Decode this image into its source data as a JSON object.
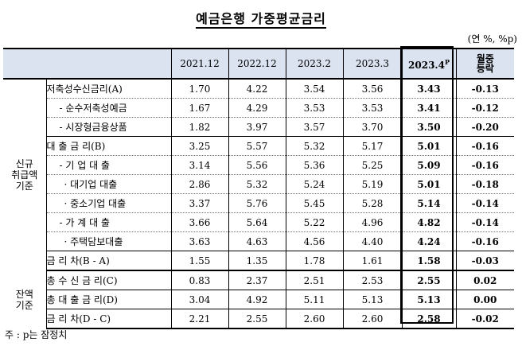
{
  "title": "예금은행 가중평균금리",
  "unit": "(연 %, %p)",
  "columns": [
    "2021.12",
    "2022.12",
    "2023.2",
    "2023.3",
    "2023.4",
    "P",
    "월중",
    "등락"
  ],
  "groups": {
    "new": [
      "신규",
      "취급액",
      "기준"
    ],
    "balance": [
      "잔액",
      "기준"
    ]
  },
  "rows_new": [
    {
      "label": "저축성수신금리(A)",
      "values": [
        "1.70",
        "4.22",
        "3.54",
        "3.56",
        "3.43",
        "-0.13"
      ]
    },
    {
      "label": "- 순수저축성예금",
      "values": [
        "1.67",
        "4.29",
        "3.53",
        "3.53",
        "3.41",
        "-0.12"
      ]
    },
    {
      "label": "- 시장형금융상품",
      "values": [
        "1.82",
        "3.97",
        "3.57",
        "3.70",
        "3.50",
        "-0.20"
      ]
    },
    {
      "label": "대 출 금 리(B)",
      "values": [
        "3.25",
        "5.57",
        "5.32",
        "5.17",
        "5.01",
        "-0.16"
      ]
    },
    {
      "label": "- 기 업 대 출",
      "values": [
        "3.14",
        "5.56",
        "5.36",
        "5.25",
        "5.09",
        "-0.16"
      ]
    },
    {
      "label": "· 대기업 대출",
      "values": [
        "2.86",
        "5.32",
        "5.24",
        "5.19",
        "5.01",
        "-0.18"
      ]
    },
    {
      "label": "· 중소기업 대출",
      "values": [
        "3.37",
        "5.76",
        "5.45",
        "5.28",
        "5.14",
        "-0.14"
      ]
    },
    {
      "label": "- 가 계 대 출",
      "values": [
        "3.66",
        "5.64",
        "5.22",
        "4.96",
        "4.82",
        "-0.14"
      ]
    },
    {
      "label": "· 주택담보대출",
      "values": [
        "3.63",
        "4.63",
        "4.56",
        "4.40",
        "4.24",
        "-0.16"
      ]
    },
    {
      "label": "금 리 차(B - A)",
      "values": [
        "1.55",
        "1.35",
        "1.78",
        "1.61",
        "1.58",
        "-0.03"
      ]
    }
  ],
  "rows_balance": [
    {
      "label": "총 수 신 금 리(C)",
      "values": [
        "0.83",
        "2.37",
        "2.51",
        "2.53",
        "2.55",
        "0.02"
      ]
    },
    {
      "label": "총 대 출 금 리(D)",
      "values": [
        "3.04",
        "4.92",
        "5.11",
        "5.13",
        "5.13",
        "0.00"
      ]
    },
    {
      "label": "금 리 차(D - C)",
      "values": [
        "2.21",
        "2.55",
        "2.60",
        "2.60",
        "2.58",
        "-0.02"
      ]
    }
  ],
  "note": "주 : p는 잠정치"
}
